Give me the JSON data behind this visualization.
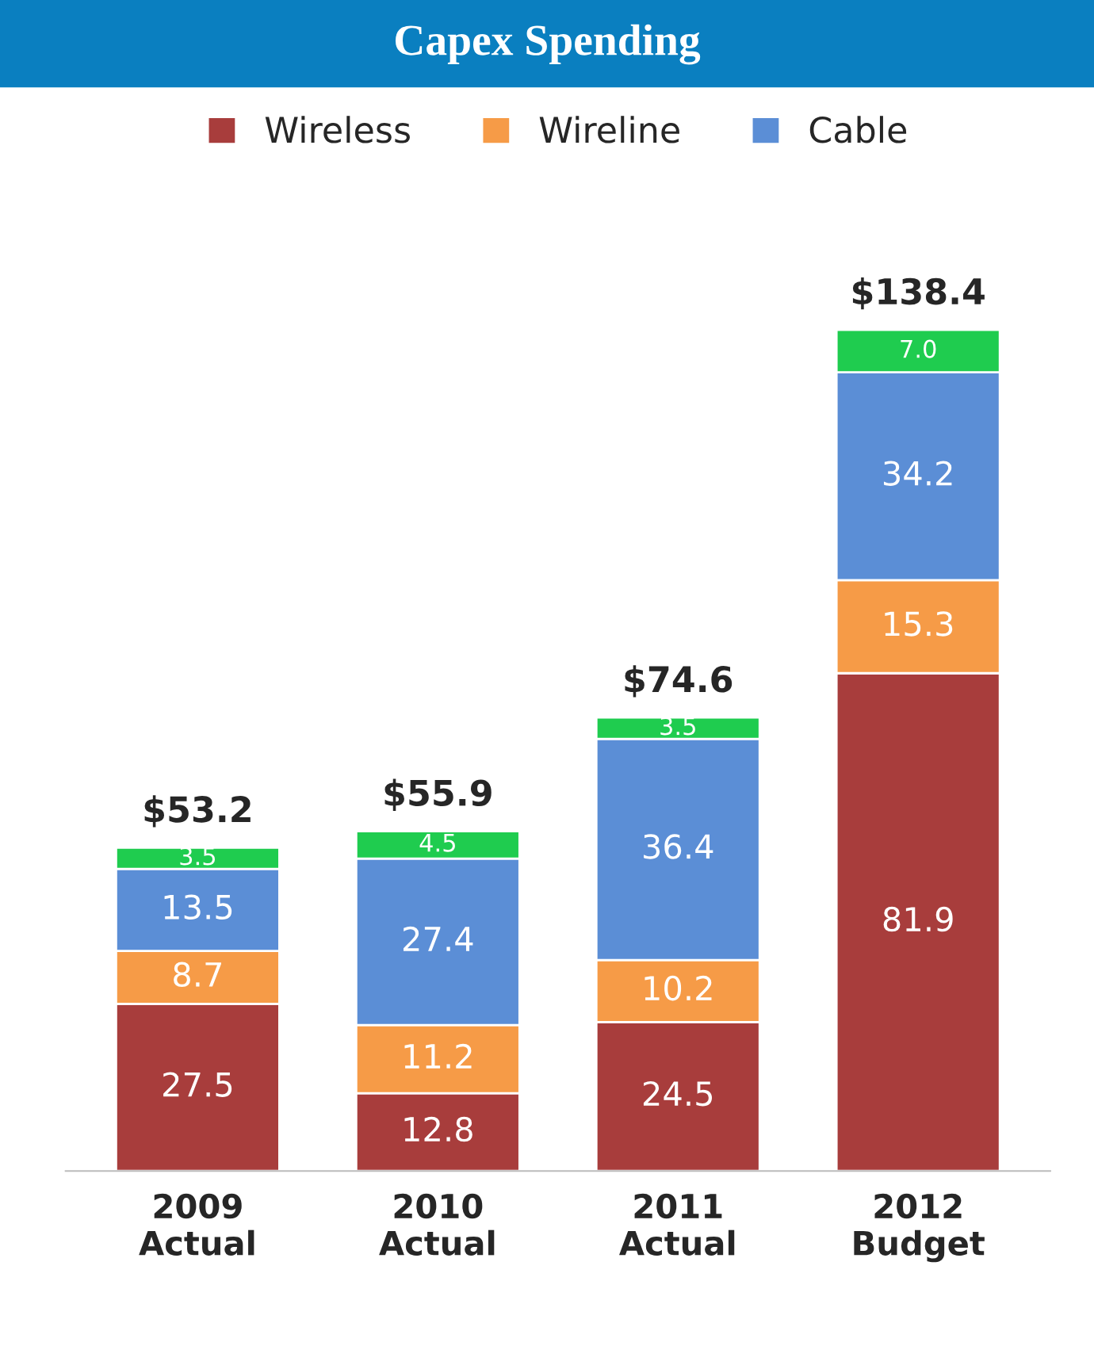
{
  "chart_data": {
    "type": "bar",
    "title": "Capex Spending",
    "stacked": true,
    "legend": "top",
    "categories": [
      "2009\nActual",
      "2010\nActual",
      "2011\nActual",
      "2012\nBudget"
    ],
    "series": [
      {
        "name": "Wireless",
        "color": "#a83d3c",
        "values": [
          27.5,
          12.8,
          24.5,
          81.9
        ],
        "value_labels": [
          "27.5",
          "12.8",
          "24.5",
          "81.9"
        ]
      },
      {
        "name": "Wireline",
        "color": "#f69b47",
        "values": [
          8.7,
          11.2,
          10.2,
          15.3
        ],
        "value_labels": [
          "8.7",
          "11.2",
          "10.2",
          "15.3"
        ]
      },
      {
        "name": "Cable",
        "color": "#5b8ed6",
        "values": [
          13.5,
          27.4,
          36.4,
          34.2
        ],
        "value_labels": [
          "13.5",
          "27.4",
          "36.4",
          "34.2"
        ]
      },
      {
        "color": "#1fcc4f",
        "values": [
          3.5,
          4.5,
          3.5,
          7.0
        ],
        "value_labels": [
          "3.5",
          "4.5",
          "3.5",
          "7.0"
        ]
      }
    ],
    "totals": [
      "$53.2",
      "$55.9",
      "$74.6",
      "$138.4"
    ]
  }
}
